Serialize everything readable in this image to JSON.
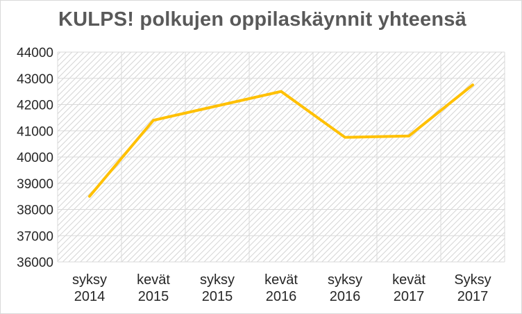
{
  "chart_data": {
    "type": "line",
    "title": "KULPS! polkujen oppilaskäynnit yhteensä",
    "categories": [
      [
        "syksy",
        "2014"
      ],
      [
        "kevät",
        "2015"
      ],
      [
        "syksy",
        "2015"
      ],
      [
        "kevät",
        "2016"
      ],
      [
        "syksy",
        "2016"
      ],
      [
        "kevät",
        "2017"
      ],
      [
        "Syksy",
        "2017"
      ]
    ],
    "series": [
      {
        "values": [
          38500,
          41400,
          41950,
          42500,
          40750,
          40800,
          42750
        ],
        "color": "#ffc000"
      }
    ],
    "ylim": [
      36000,
      44000
    ],
    "yticks": [
      "36000",
      "37000",
      "38000",
      "39000",
      "40000",
      "41000",
      "42000",
      "43000",
      "44000"
    ],
    "grid": true,
    "plot_background": "hatched",
    "legend": "none"
  }
}
